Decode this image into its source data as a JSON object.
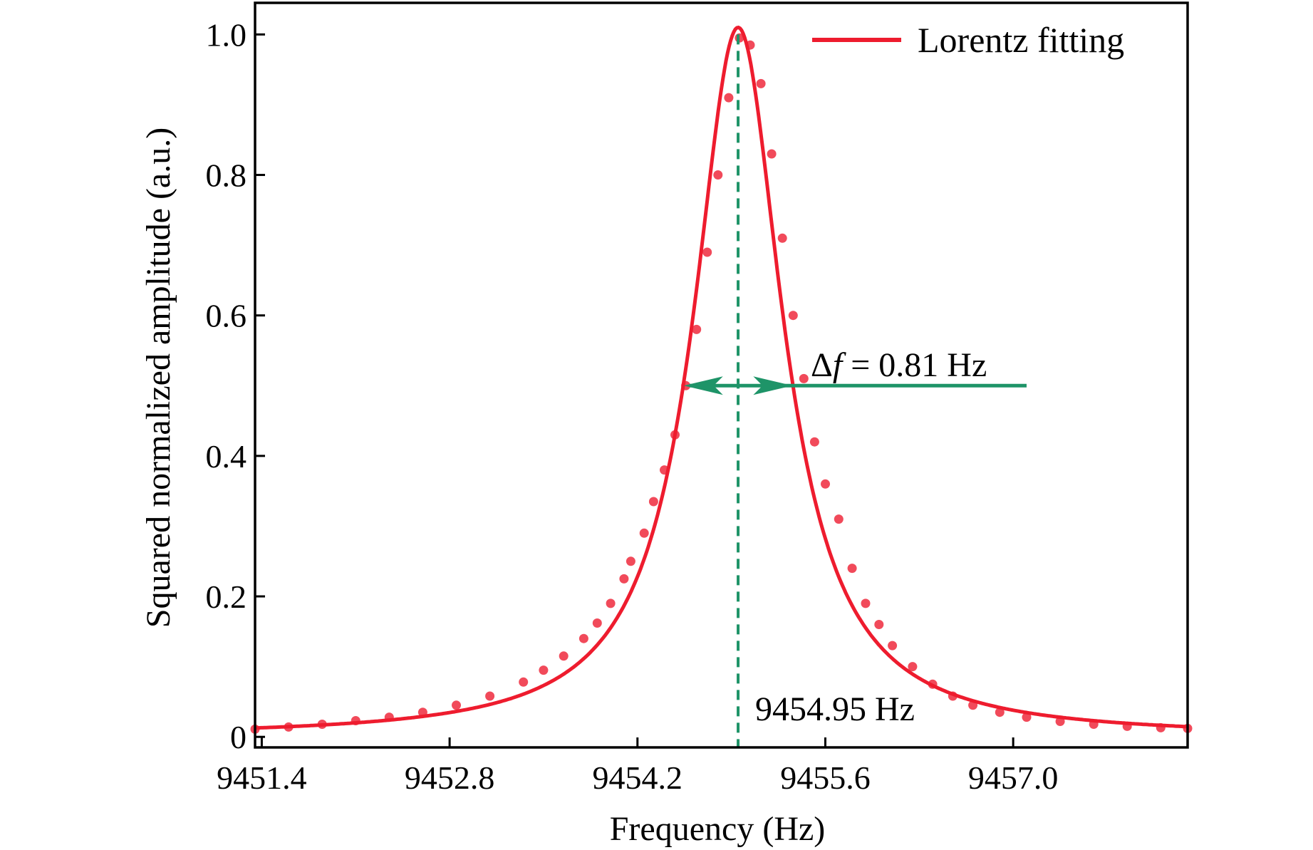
{
  "chart_data": {
    "type": "scatter",
    "title": "",
    "xlabel": "Frequency (Hz)",
    "ylabel": "Squared normalized amplitude (a.u.)",
    "xlim": [
      9451.35,
      9458.3
    ],
    "ylim": [
      -0.015,
      1.045
    ],
    "x_ticks": [
      9451.4,
      9452.8,
      9454.2,
      9455.6,
      9457.0
    ],
    "x_tick_labels": [
      "9451.4",
      "9452.8",
      "9454.2",
      "9455.6",
      "9457.0"
    ],
    "y_ticks": [
      0,
      0.2,
      0.4,
      0.6,
      0.8,
      1.0
    ],
    "y_tick_labels": [
      "0",
      "0.2",
      "0.4",
      "0.6",
      "0.8",
      "1.0"
    ],
    "grid": false,
    "legend": {
      "position": "top-right",
      "entries": [
        "Lorentz fitting"
      ]
    },
    "colors": {
      "fit": "#ee1c2e",
      "data": "#ee2a3d",
      "marker": "#1e9468",
      "axis": "#000000"
    },
    "series": [
      {
        "name": "Lorentz fitting",
        "kind": "line",
        "model": "lorentzian",
        "peak_frequency": 9454.95,
        "fwhm": 0.81,
        "amplitude": 1.01,
        "offset": 0.0
      },
      {
        "kind": "scatter",
        "x": [
          9451.35,
          9451.6,
          9451.85,
          9452.1,
          9452.35,
          9452.6,
          9452.85,
          9453.1,
          9453.35,
          9453.5,
          9453.65,
          9453.8,
          9453.9,
          9454.0,
          9454.1,
          9454.15,
          9454.25,
          9454.32,
          9454.4,
          9454.48,
          9454.56,
          9454.64,
          9454.72,
          9454.8,
          9454.88,
          9454.96,
          9455.04,
          9455.12,
          9455.2,
          9455.28,
          9455.36,
          9455.44,
          9455.52,
          9455.6,
          9455.7,
          9455.8,
          9455.9,
          9456.0,
          9456.1,
          9456.25,
          9456.4,
          9456.55,
          9456.7,
          9456.9,
          9457.1,
          9457.35,
          9457.6,
          9457.85,
          9458.1,
          9458.3
        ],
        "y": [
          0.011,
          0.014,
          0.018,
          0.023,
          0.028,
          0.035,
          0.045,
          0.058,
          0.078,
          0.095,
          0.115,
          0.14,
          0.162,
          0.19,
          0.225,
          0.25,
          0.29,
          0.335,
          0.38,
          0.43,
          0.5,
          0.58,
          0.69,
          0.8,
          0.91,
          0.995,
          0.985,
          0.93,
          0.83,
          0.71,
          0.6,
          0.51,
          0.42,
          0.36,
          0.31,
          0.24,
          0.19,
          0.16,
          0.13,
          0.1,
          0.075,
          0.058,
          0.045,
          0.035,
          0.028,
          0.022,
          0.018,
          0.015,
          0.013,
          0.012
        ]
      }
    ],
    "annotations": {
      "peak_line_x": 9454.95,
      "peak_label": "9454.95 Hz",
      "width_label_prefix": "Δ",
      "width_label_var": "f",
      "width_label_value": " = 0.81 Hz",
      "width_arrow_y": 0.5,
      "width_line_end_x": 9457.1
    }
  }
}
